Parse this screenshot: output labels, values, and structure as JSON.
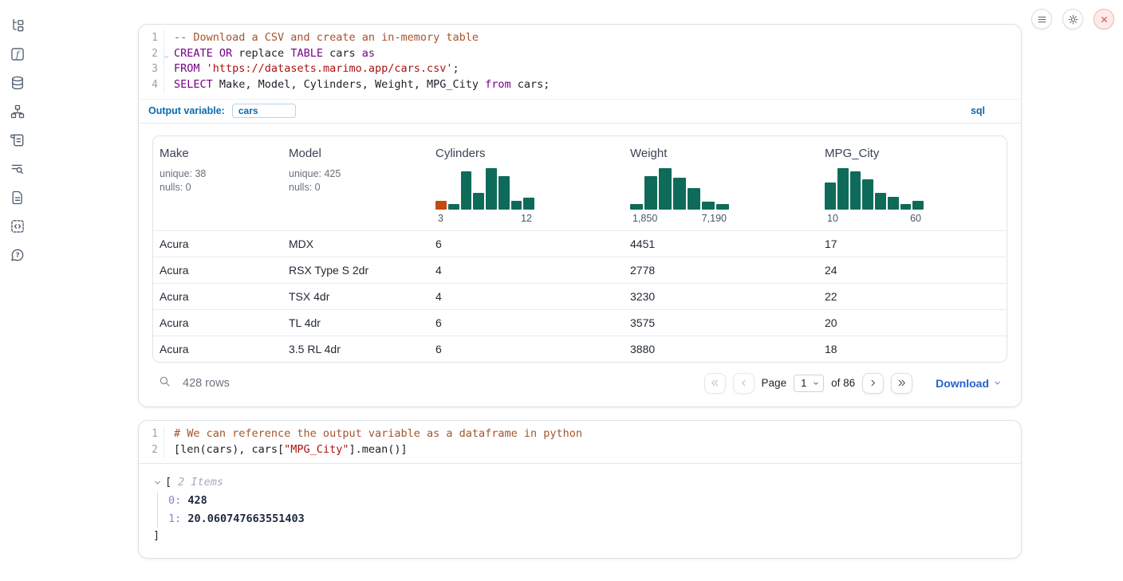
{
  "colors": {
    "accent_blue": "#0b6ab0",
    "link_blue": "#2563c9",
    "hist_green": "#0f6b59",
    "hist_orange": "#c24b10",
    "close_red": "#de5149",
    "keyword_purple": "#770088",
    "string_red": "#aa1111",
    "comment_brown": "#a4542c"
  },
  "sidebar": {
    "icons": [
      {
        "name": "file-explorer"
      },
      {
        "name": "variables"
      },
      {
        "name": "data-sources"
      },
      {
        "name": "dependency-graph"
      },
      {
        "name": "scratchpad"
      },
      {
        "name": "logs"
      },
      {
        "name": "documentation"
      },
      {
        "name": "snippets"
      },
      {
        "name": "help"
      }
    ]
  },
  "topbar": {
    "buttons": [
      {
        "name": "menu"
      },
      {
        "name": "settings"
      },
      {
        "name": "shutdown"
      }
    ]
  },
  "sql_cell": {
    "gutter": [
      "1",
      "2",
      "3",
      "4"
    ],
    "lines": {
      "l1": {
        "comment": "-- Download a CSV and create an in-memory table"
      },
      "l2": {
        "t1": "CREATE OR",
        "t2": " replace ",
        "t3": "TABLE",
        "t4": " cars ",
        "t5": "as"
      },
      "l3": {
        "t1": "FROM",
        "t2": " ",
        "t3": "'https://datasets.marimo.app/cars.csv'",
        "t4": ";"
      },
      "l4": {
        "t1": "SELECT",
        "t2": " Make, Model, Cylinders, Weight, MPG_City ",
        "t3": "from",
        "t4": " cars;"
      }
    },
    "output_variable": {
      "label": "Output variable:",
      "value": "cars"
    },
    "language_badge": "sql"
  },
  "table": {
    "columns": [
      {
        "name": "Make",
        "unique": "unique: 38",
        "nulls": "nulls: 0"
      },
      {
        "name": "Model",
        "unique": "unique: 425",
        "nulls": "nulls: 0"
      },
      {
        "name": "Cylinders",
        "hist_min": "3",
        "hist_max": "12",
        "bars": [
          20,
          12,
          85,
          37,
          93,
          75,
          20,
          26
        ]
      },
      {
        "name": "Weight",
        "hist_min": "1,850",
        "hist_max": "7,190",
        "bars": [
          12,
          75,
          93,
          72,
          48,
          18,
          13
        ]
      },
      {
        "name": "MPG_City",
        "hist_min": "10",
        "hist_max": "60",
        "bars": [
          60,
          93,
          85,
          68,
          38,
          28,
          13,
          19
        ]
      }
    ],
    "rows": [
      {
        "make": "Acura",
        "model": "MDX",
        "cylinders": "6",
        "weight": "4451",
        "mpg_city": "17"
      },
      {
        "make": "Acura",
        "model": "RSX Type S 2dr",
        "cylinders": "4",
        "weight": "2778",
        "mpg_city": "24"
      },
      {
        "make": "Acura",
        "model": "TSX 4dr",
        "cylinders": "4",
        "weight": "3230",
        "mpg_city": "22"
      },
      {
        "make": "Acura",
        "model": "TL 4dr",
        "cylinders": "6",
        "weight": "3575",
        "mpg_city": "20"
      },
      {
        "make": "Acura",
        "model": "3.5 RL 4dr",
        "cylinders": "6",
        "weight": "3880",
        "mpg_city": "18"
      }
    ],
    "footer": {
      "row_count": "428 rows",
      "page_label": "Page",
      "page_value": "1",
      "of_label": "of 86",
      "download_label": "Download"
    }
  },
  "python_cell": {
    "gutter": [
      "1",
      "2"
    ],
    "lines": {
      "l1": {
        "comment": "# We can reference the output variable as a dataframe in python"
      },
      "l2": {
        "t1": "[len(cars), cars[",
        "t2": "\"MPG_City\"",
        "t3": "].mean()]"
      }
    },
    "output": {
      "bracket_open": "[",
      "items_label": "2 Items",
      "entries": [
        {
          "key": "0:",
          "value": "428"
        },
        {
          "key": "1:",
          "value": "20.060747663551403"
        }
      ],
      "bracket_close": "]"
    }
  }
}
